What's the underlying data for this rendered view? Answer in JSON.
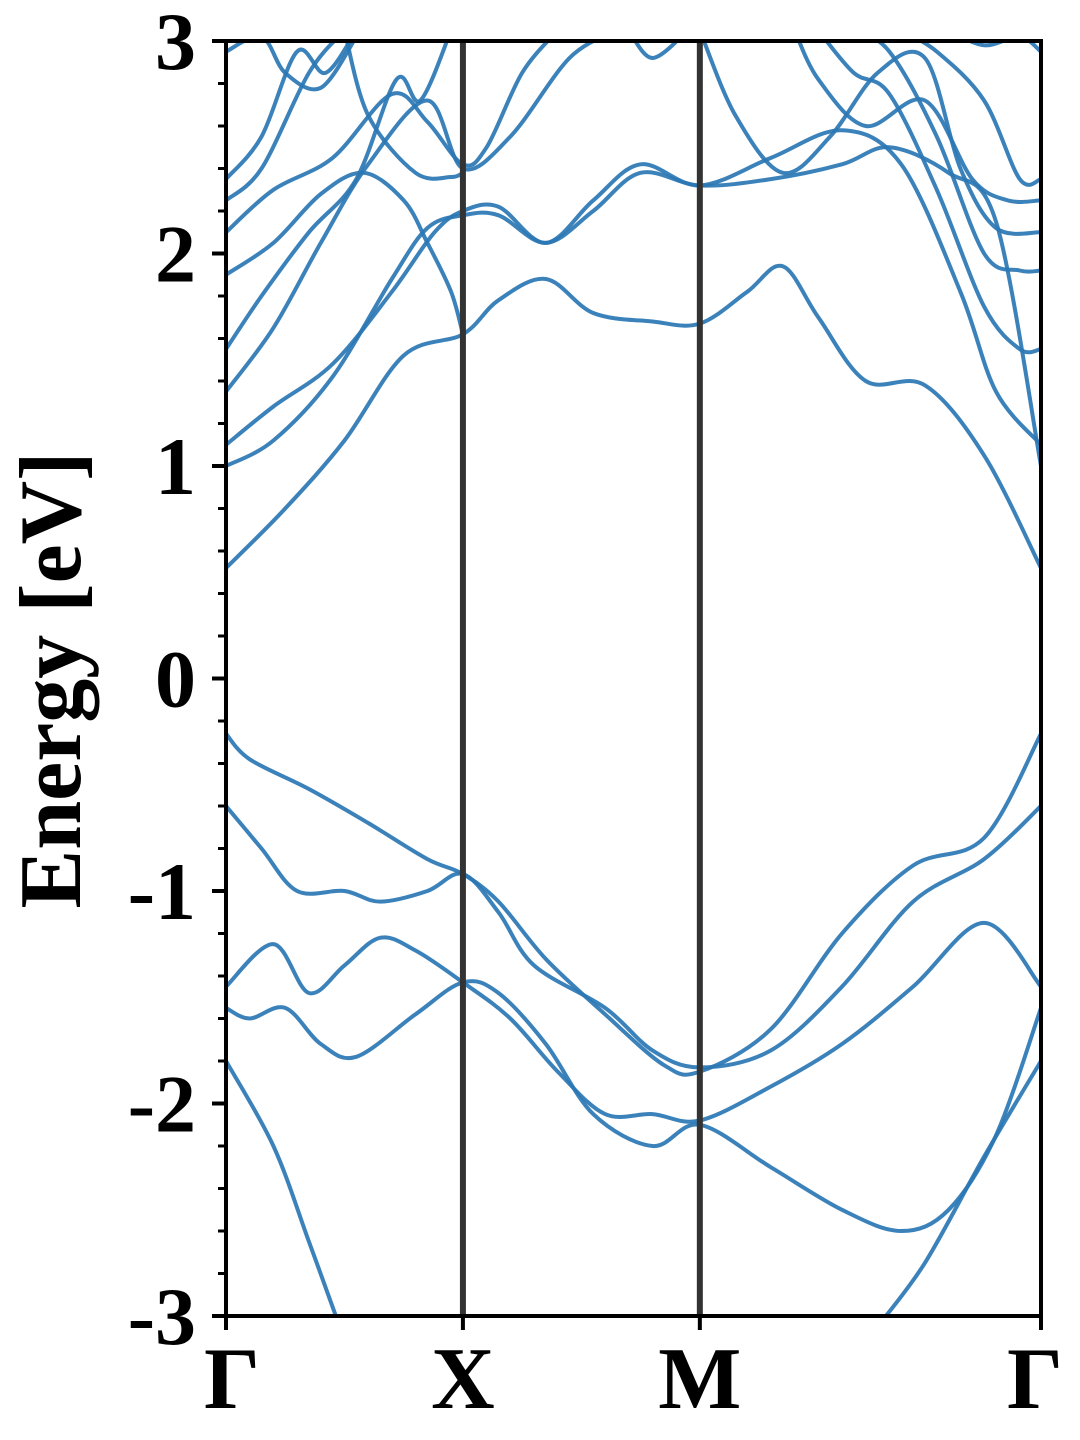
{
  "chart_data": {
    "type": "line",
    "title": "",
    "xlabel": "",
    "ylabel": "Energy [eV]",
    "ylim": [
      -3,
      3
    ],
    "xlim": [
      0,
      3
    ],
    "y_ticks": [
      -3,
      -2,
      -1,
      0,
      1,
      2,
      3
    ],
    "y_tick_labels": [
      "-3",
      "-2",
      "-1",
      "0",
      "1",
      "2",
      "3"
    ],
    "y_minor_step": 0.2,
    "x_ticks": [
      {
        "x": 0,
        "label": "Γ"
      },
      {
        "x": 1,
        "label": "X"
      },
      {
        "x": 2,
        "label": "M"
      },
      {
        "x": 3,
        "label": "Γ"
      }
    ],
    "segment_widths": [
      1.0,
      1.0,
      1.44
    ],
    "vertical_lines_at": [
      1,
      2
    ],
    "grid": false,
    "legend": "none",
    "colors": {
      "band": "#2b77b4",
      "vline": "#333333",
      "axis": "#000000"
    },
    "series": [
      {
        "values": [
          [
            0,
            -0.26
          ],
          [
            0.1,
            -0.38
          ],
          [
            0.35,
            -0.52
          ],
          [
            0.6,
            -0.68
          ],
          [
            0.85,
            -0.85
          ],
          [
            1,
            -0.92
          ],
          [
            1.15,
            -1.05
          ],
          [
            1.35,
            -1.32
          ],
          [
            1.6,
            -1.58
          ],
          [
            1.85,
            -1.82
          ],
          [
            2,
            -1.85
          ],
          [
            2.3,
            -1.65
          ],
          [
            2.6,
            -1.2
          ],
          [
            2.9,
            -0.88
          ],
          [
            3.2,
            -0.75
          ],
          [
            3.44,
            -0.26
          ]
        ]
      },
      {
        "values": [
          [
            0,
            -0.6
          ],
          [
            0.15,
            -0.8
          ],
          [
            0.3,
            -1.0
          ],
          [
            0.5,
            -1.0
          ],
          [
            0.65,
            -1.05
          ],
          [
            0.85,
            -1.0
          ],
          [
            1,
            -0.92
          ],
          [
            1.15,
            -1.1
          ],
          [
            1.3,
            -1.35
          ],
          [
            1.6,
            -1.55
          ],
          [
            1.8,
            -1.75
          ],
          [
            2,
            -1.83
          ],
          [
            2.3,
            -1.75
          ],
          [
            2.6,
            -1.45
          ],
          [
            2.9,
            -1.05
          ],
          [
            3.2,
            -0.85
          ],
          [
            3.44,
            -0.6
          ]
        ]
      },
      {
        "values": [
          [
            0,
            -1.45
          ],
          [
            0.2,
            -1.25
          ],
          [
            0.35,
            -1.48
          ],
          [
            0.5,
            -1.35
          ],
          [
            0.65,
            -1.22
          ],
          [
            0.8,
            -1.28
          ],
          [
            1,
            -1.43
          ],
          [
            1.2,
            -1.6
          ],
          [
            1.4,
            -1.85
          ],
          [
            1.6,
            -2.05
          ],
          [
            1.8,
            -2.05
          ],
          [
            2,
            -2.08
          ],
          [
            2.3,
            -1.92
          ],
          [
            2.6,
            -1.72
          ],
          [
            2.9,
            -1.45
          ],
          [
            3.2,
            -1.15
          ],
          [
            3.44,
            -1.45
          ]
        ]
      },
      {
        "values": [
          [
            0,
            -1.55
          ],
          [
            0.1,
            -1.6
          ],
          [
            0.25,
            -1.55
          ],
          [
            0.4,
            -1.72
          ],
          [
            0.55,
            -1.78
          ],
          [
            0.8,
            -1.58
          ],
          [
            1,
            -1.43
          ],
          [
            1.15,
            -1.48
          ],
          [
            1.35,
            -1.72
          ],
          [
            1.55,
            -2.05
          ],
          [
            1.8,
            -2.2
          ],
          [
            2,
            -2.1
          ],
          [
            2.3,
            -2.3
          ],
          [
            2.6,
            -2.5
          ],
          [
            2.85,
            -2.6
          ],
          [
            3.05,
            -2.5
          ],
          [
            3.25,
            -2.15
          ],
          [
            3.44,
            -1.55
          ]
        ]
      },
      {
        "values": [
          [
            0,
            -1.8
          ],
          [
            0.2,
            -2.2
          ],
          [
            0.35,
            -2.65
          ],
          [
            0.48,
            -3.05
          ]
        ]
      },
      {
        "values": [
          [
            2.75,
            -3.05
          ],
          [
            2.95,
            -2.75
          ],
          [
            3.2,
            -2.25
          ],
          [
            3.44,
            -1.8
          ]
        ]
      },
      {
        "values": [
          [
            0,
            0.52
          ],
          [
            0.25,
            0.8
          ],
          [
            0.5,
            1.12
          ],
          [
            0.75,
            1.52
          ],
          [
            1,
            1.62
          ],
          [
            1.15,
            1.78
          ],
          [
            1.35,
            1.88
          ],
          [
            1.55,
            1.72
          ],
          [
            1.8,
            1.68
          ],
          [
            2,
            1.67
          ],
          [
            2.2,
            1.82
          ],
          [
            2.35,
            1.94
          ],
          [
            2.5,
            1.7
          ],
          [
            2.7,
            1.4
          ],
          [
            2.95,
            1.38
          ],
          [
            3.2,
            1.05
          ],
          [
            3.44,
            0.52
          ]
        ]
      },
      {
        "values": [
          [
            0,
            1.0
          ],
          [
            0.2,
            1.12
          ],
          [
            0.45,
            1.42
          ],
          [
            0.7,
            1.88
          ],
          [
            0.85,
            2.12
          ],
          [
            1,
            2.18
          ],
          [
            1.15,
            2.18
          ],
          [
            1.35,
            2.05
          ],
          [
            1.55,
            2.2
          ],
          [
            1.75,
            2.38
          ],
          [
            2,
            2.32
          ],
          [
            2.3,
            2.35
          ],
          [
            2.6,
            2.42
          ],
          [
            2.8,
            2.5
          ],
          [
            3.05,
            2.38
          ],
          [
            3.25,
            2.15
          ],
          [
            3.44,
            1.0
          ]
        ]
      },
      {
        "values": [
          [
            0,
            1.1
          ],
          [
            0.2,
            1.28
          ],
          [
            0.45,
            1.48
          ],
          [
            0.7,
            1.82
          ],
          [
            0.88,
            2.1
          ],
          [
            1,
            2.2
          ],
          [
            1.15,
            2.22
          ],
          [
            1.35,
            2.05
          ],
          [
            1.55,
            2.25
          ],
          [
            1.75,
            2.42
          ],
          [
            2,
            2.32
          ],
          [
            2.3,
            2.45
          ],
          [
            2.6,
            2.58
          ],
          [
            2.85,
            2.42
          ],
          [
            3.1,
            1.82
          ],
          [
            3.25,
            1.35
          ],
          [
            3.44,
            1.1
          ]
        ]
      },
      {
        "values": [
          [
            0,
            1.35
          ],
          [
            0.2,
            1.65
          ],
          [
            0.4,
            2.05
          ],
          [
            0.6,
            2.42
          ],
          [
            0.85,
            2.72
          ],
          [
            1,
            2.4
          ],
          [
            1.2,
            2.55
          ],
          [
            1.45,
            2.92
          ],
          [
            1.65,
            3.05
          ]
        ]
      },
      {
        "values": [
          [
            0,
            1.55
          ],
          [
            0.15,
            1.8
          ],
          [
            0.35,
            2.1
          ],
          [
            0.55,
            2.35
          ],
          [
            0.72,
            2.82
          ],
          [
            0.82,
            2.72
          ],
          [
            0.95,
            3.05
          ]
        ]
      },
      {
        "values": [
          [
            0,
            1.9
          ],
          [
            0.2,
            2.05
          ],
          [
            0.4,
            2.28
          ],
          [
            0.58,
            2.38
          ],
          [
            0.75,
            2.25
          ],
          [
            0.85,
            2.05
          ],
          [
            0.95,
            1.82
          ],
          [
            1,
            1.62
          ]
        ]
      },
      {
        "values": [
          [
            0,
            2.1
          ],
          [
            0.2,
            2.3
          ],
          [
            0.45,
            2.45
          ],
          [
            0.7,
            2.75
          ],
          [
            0.85,
            2.62
          ],
          [
            1,
            2.42
          ],
          [
            1.1,
            2.5
          ],
          [
            1.25,
            2.85
          ],
          [
            1.4,
            3.05
          ]
        ]
      },
      {
        "values": [
          [
            0,
            2.25
          ],
          [
            0.15,
            2.4
          ],
          [
            0.35,
            2.85
          ],
          [
            0.5,
            3.05
          ]
        ]
      },
      {
        "values": [
          [
            0,
            2.35
          ],
          [
            0.15,
            2.55
          ],
          [
            0.3,
            2.95
          ],
          [
            0.42,
            2.85
          ],
          [
            0.55,
            3.05
          ]
        ]
      },
      {
        "values": [
          [
            0,
            2.95
          ],
          [
            0.15,
            3.02
          ],
          [
            0.25,
            2.85
          ],
          [
            0.4,
            2.78
          ],
          [
            0.55,
            3.02
          ]
        ]
      },
      {
        "values": [
          [
            0.5,
            3.05
          ],
          [
            0.6,
            2.65
          ],
          [
            0.8,
            2.38
          ],
          [
            0.95,
            2.36
          ],
          [
            1,
            2.38
          ]
        ]
      },
      {
        "values": [
          [
            1.7,
            3.05
          ],
          [
            1.8,
            2.92
          ],
          [
            1.95,
            3.05
          ]
        ]
      },
      {
        "values": [
          [
            2,
            3.05
          ],
          [
            2.15,
            2.65
          ],
          [
            2.35,
            2.38
          ],
          [
            2.55,
            2.55
          ],
          [
            2.75,
            2.85
          ],
          [
            2.95,
            2.92
          ],
          [
            3.1,
            2.4
          ],
          [
            3.25,
            2.12
          ],
          [
            3.44,
            2.1
          ]
        ]
      },
      {
        "values": [
          [
            2.4,
            3.05
          ],
          [
            2.5,
            2.82
          ],
          [
            2.7,
            2.6
          ],
          [
            2.95,
            2.72
          ],
          [
            3.15,
            2.35
          ],
          [
            3.3,
            2.25
          ],
          [
            3.44,
            2.25
          ]
        ]
      },
      {
        "values": [
          [
            2.5,
            3.05
          ],
          [
            2.65,
            2.85
          ],
          [
            2.8,
            2.75
          ],
          [
            3.0,
            2.3
          ],
          [
            3.2,
            1.75
          ],
          [
            3.35,
            1.55
          ],
          [
            3.44,
            1.55
          ]
        ]
      },
      {
        "values": [
          [
            2.65,
            3.05
          ],
          [
            2.8,
            2.95
          ],
          [
            3.0,
            2.55
          ],
          [
            3.2,
            2.0
          ],
          [
            3.35,
            1.92
          ],
          [
            3.44,
            1.92
          ]
        ]
      },
      {
        "values": [
          [
            2.85,
            3.05
          ],
          [
            3.0,
            2.95
          ],
          [
            3.2,
            2.72
          ],
          [
            3.35,
            2.35
          ],
          [
            3.44,
            2.35
          ]
        ]
      },
      {
        "values": [
          [
            3.05,
            3.05
          ],
          [
            3.2,
            2.98
          ],
          [
            3.35,
            3.02
          ],
          [
            3.44,
            2.95
          ]
        ]
      }
    ]
  }
}
